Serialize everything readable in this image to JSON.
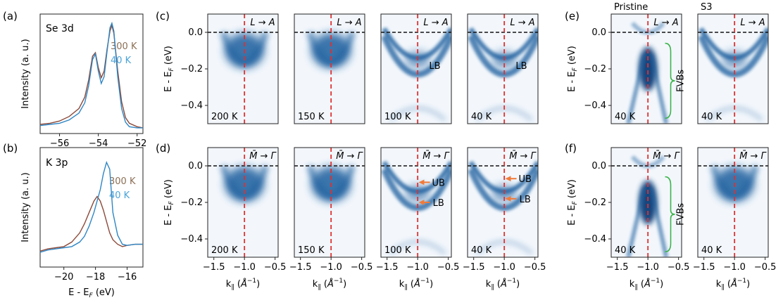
{
  "figure": {
    "panel_labels": {
      "a": "(a)",
      "b": "(b)",
      "c": "(c)",
      "d": "(d)",
      "e": "(e)",
      "f": "(f)"
    },
    "colors": {
      "hot": "#8b4a3a",
      "cold": "#2f86c4",
      "hot_label": "#8b6f55",
      "cold_label": "#4aa3d8",
      "fermi": "#111111",
      "kline": "#e03030",
      "arrow": "#f07a3a",
      "bracket": "#3cb44b",
      "map": "#1f5e9e"
    }
  },
  "chart_data": [
    {
      "id": "a",
      "type": "line",
      "title": "Se 3d",
      "xlabel": "",
      "ylabel": "Intensity (a. u.)",
      "xlim": [
        -57,
        -51.7
      ],
      "ylim": [
        0,
        1.05
      ],
      "xticks": [
        -56,
        -54,
        -52
      ],
      "xtick_labels": [
        "−56",
        "−54",
        "−52"
      ],
      "legend": [
        "300 K",
        "40 K"
      ],
      "series": [
        {
          "name": "300 K",
          "x": [
            -57,
            -56.5,
            -56,
            -55.5,
            -55,
            -54.7,
            -54.5,
            -54.3,
            -54.15,
            -54,
            -53.85,
            -53.7,
            -53.55,
            -53.4,
            -53.3,
            -53.2,
            -53,
            -52.8,
            -52.6,
            -52.4,
            -52,
            -51.7
          ],
          "y": [
            0.08,
            0.09,
            0.11,
            0.15,
            0.22,
            0.32,
            0.47,
            0.68,
            0.71,
            0.58,
            0.49,
            0.55,
            0.74,
            0.9,
            0.95,
            0.88,
            0.55,
            0.28,
            0.14,
            0.09,
            0.06,
            0.05
          ]
        },
        {
          "name": "40 K",
          "x": [
            -57,
            -56.5,
            -56,
            -55.5,
            -55,
            -54.7,
            -54.5,
            -54.3,
            -54.15,
            -54,
            -53.85,
            -53.7,
            -53.55,
            -53.4,
            -53.3,
            -53.2,
            -53,
            -52.8,
            -52.6,
            -52.4,
            -52,
            -51.7
          ],
          "y": [
            0.07,
            0.08,
            0.09,
            0.12,
            0.18,
            0.27,
            0.42,
            0.65,
            0.7,
            0.55,
            0.44,
            0.5,
            0.72,
            0.93,
            0.97,
            0.9,
            0.5,
            0.22,
            0.1,
            0.06,
            0.05,
            0.05
          ]
        }
      ]
    },
    {
      "id": "b",
      "type": "line",
      "title": "K 3p",
      "xlabel": "E - E_F (eV)",
      "ylabel": "Intensity (a. u.)",
      "xlim": [
        -21.5,
        -15
      ],
      "ylim": [
        0,
        1.05
      ],
      "xticks": [
        -20,
        -18,
        -16
      ],
      "xtick_labels": [
        "−20",
        "−18",
        "−16"
      ],
      "legend": [
        "300 K",
        "40 K"
      ],
      "series": [
        {
          "name": "300 K",
          "x": [
            -21.5,
            -21,
            -20.5,
            -20,
            -19.5,
            -19,
            -18.7,
            -18.4,
            -18.1,
            -17.9,
            -17.7,
            -17.5,
            -17.3,
            -17.1,
            -16.9,
            -16.6,
            -16.3,
            -16,
            -15.5,
            -15
          ],
          "y": [
            0.14,
            0.16,
            0.17,
            0.18,
            0.22,
            0.3,
            0.38,
            0.48,
            0.58,
            0.62,
            0.58,
            0.5,
            0.4,
            0.3,
            0.24,
            0.2,
            0.18,
            0.19,
            0.2,
            0.2
          ]
        },
        {
          "name": "40 K",
          "x": [
            -21.5,
            -21,
            -20.5,
            -20,
            -19.5,
            -19,
            -18.7,
            -18.4,
            -18.1,
            -17.9,
            -17.7,
            -17.5,
            -17.3,
            -17.1,
            -16.9,
            -16.6,
            -16.3,
            -16,
            -15.5,
            -15
          ],
          "y": [
            0.13,
            0.15,
            0.16,
            0.17,
            0.18,
            0.22,
            0.27,
            0.36,
            0.48,
            0.58,
            0.68,
            0.82,
            0.92,
            0.86,
            0.48,
            0.28,
            0.2,
            0.19,
            0.2,
            0.2
          ]
        }
      ]
    },
    {
      "id": "c",
      "type": "heatmap",
      "direction": "L → A",
      "ylabel": "E - E_F (eV)",
      "xlabel": "",
      "xlim": [
        -1.6,
        -0.45
      ],
      "ylim": [
        -0.5,
        0.1
      ],
      "yticks": [
        0.0,
        -0.2,
        -0.4
      ],
      "ytick_labels": [
        "0.0",
        "−0.2",
        "−0.4"
      ],
      "fermi_level": 0.0,
      "k_line": -1.0,
      "panels": [
        {
          "temperature": "200 K",
          "band_label": ""
        },
        {
          "temperature": "150 K",
          "band_label": ""
        },
        {
          "temperature": "100 K",
          "band_label": "LB"
        },
        {
          "temperature": "40 K",
          "band_label": "LB"
        }
      ]
    },
    {
      "id": "d",
      "type": "heatmap",
      "direction": "M̄ → Γ̄",
      "ylabel": "E - E_F (eV)",
      "xlabel": "k∥ (Å⁻¹)",
      "xlim": [
        -1.6,
        -0.45
      ],
      "ylim": [
        -0.5,
        0.1
      ],
      "xticks": [
        -1.5,
        -1.0,
        -0.5
      ],
      "xtick_labels": [
        "−1.5",
        "−1.0",
        "−0.5"
      ],
      "yticks": [
        0.0,
        -0.2,
        -0.4
      ],
      "ytick_labels": [
        "0.0",
        "−0.2",
        "−0.4"
      ],
      "fermi_level": 0.0,
      "k_line": -1.0,
      "panels": [
        {
          "temperature": "200 K",
          "arrows": []
        },
        {
          "temperature": "150 K",
          "arrows": []
        },
        {
          "temperature": "100 K",
          "arrows": [
            {
              "label": "UB",
              "energy": -0.09
            },
            {
              "label": "LB",
              "energy": -0.2
            }
          ]
        },
        {
          "temperature": "40 K",
          "arrows": [
            {
              "label": "UB",
              "energy": -0.07
            },
            {
              "label": "LB",
              "energy": -0.18
            }
          ]
        }
      ]
    },
    {
      "id": "e",
      "type": "heatmap",
      "direction": "L → A",
      "ylabel": "E - E_F (eV)",
      "xlabel": "",
      "xlim": [
        -1.6,
        -0.45
      ],
      "ylim": [
        -0.5,
        0.1
      ],
      "yticks": [
        0.0,
        -0.2,
        -0.4
      ],
      "ytick_labels": [
        "0.0",
        "−0.2",
        "−0.4"
      ],
      "fermi_level": 0.0,
      "k_line": -1.0,
      "panels": [
        {
          "sample": "Pristine",
          "temperature": "40 K",
          "annotation": "FVBs"
        },
        {
          "sample": "S3",
          "temperature": "40 K",
          "annotation": ""
        }
      ]
    },
    {
      "id": "f",
      "type": "heatmap",
      "direction": "M̄ → Γ̄",
      "ylabel": "E - E_F (eV)",
      "xlabel": "k∥ (Å⁻¹)",
      "xlim": [
        -1.6,
        -0.45
      ],
      "ylim": [
        -0.5,
        0.1
      ],
      "xticks": [
        -1.5,
        -1.0,
        -0.5
      ],
      "xtick_labels": [
        "−1.5",
        "−1.0",
        "−0.5"
      ],
      "yticks": [
        0.0,
        -0.2,
        -0.4
      ],
      "ytick_labels": [
        "0.0",
        "−0.2",
        "−0.4"
      ],
      "fermi_level": 0.0,
      "k_line": -1.0,
      "panels": [
        {
          "sample": "",
          "temperature": "40 K",
          "annotation": "FVBs"
        },
        {
          "sample": "",
          "temperature": "40 K",
          "annotation": ""
        }
      ]
    }
  ]
}
